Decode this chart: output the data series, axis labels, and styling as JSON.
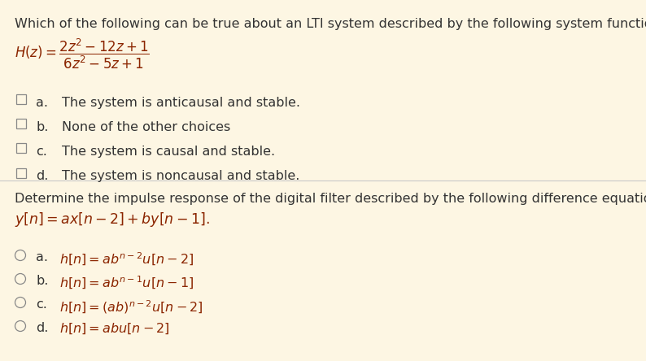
{
  "bg_color": "#fdf6e3",
  "divider_color": "#c8c8c8",
  "text_color": "#333333",
  "math_color": "#8b2500",
  "q1_question": "Which of the following can be true about an LTI system described by the following system function?",
  "q1_choices": [
    [
      "a.",
      "The system is anticausal and stable."
    ],
    [
      "b.",
      "None of the other choices"
    ],
    [
      "c.",
      "The system is causal and stable."
    ],
    [
      "d.",
      "The system is noncausal and stable."
    ]
  ],
  "q2_question": "Determine the impulse response of the digital filter described by the following difference equation:",
  "q2_formula": "$y[n] = ax[n-2] + by[n-1].$",
  "q2_choices": [
    [
      "a.",
      "$h[n] = ab^{n-2}u[n-2]$"
    ],
    [
      "b.",
      "$h[n] = ab^{n-1}u[n-1]$"
    ],
    [
      "c.",
      "$h[n] = (ab)^{n-2}u[n-2]$"
    ],
    [
      "d.",
      "$h[n] = abu[n-2]$"
    ]
  ],
  "figsize": [
    7.94,
    4.44
  ],
  "dpi": 100
}
